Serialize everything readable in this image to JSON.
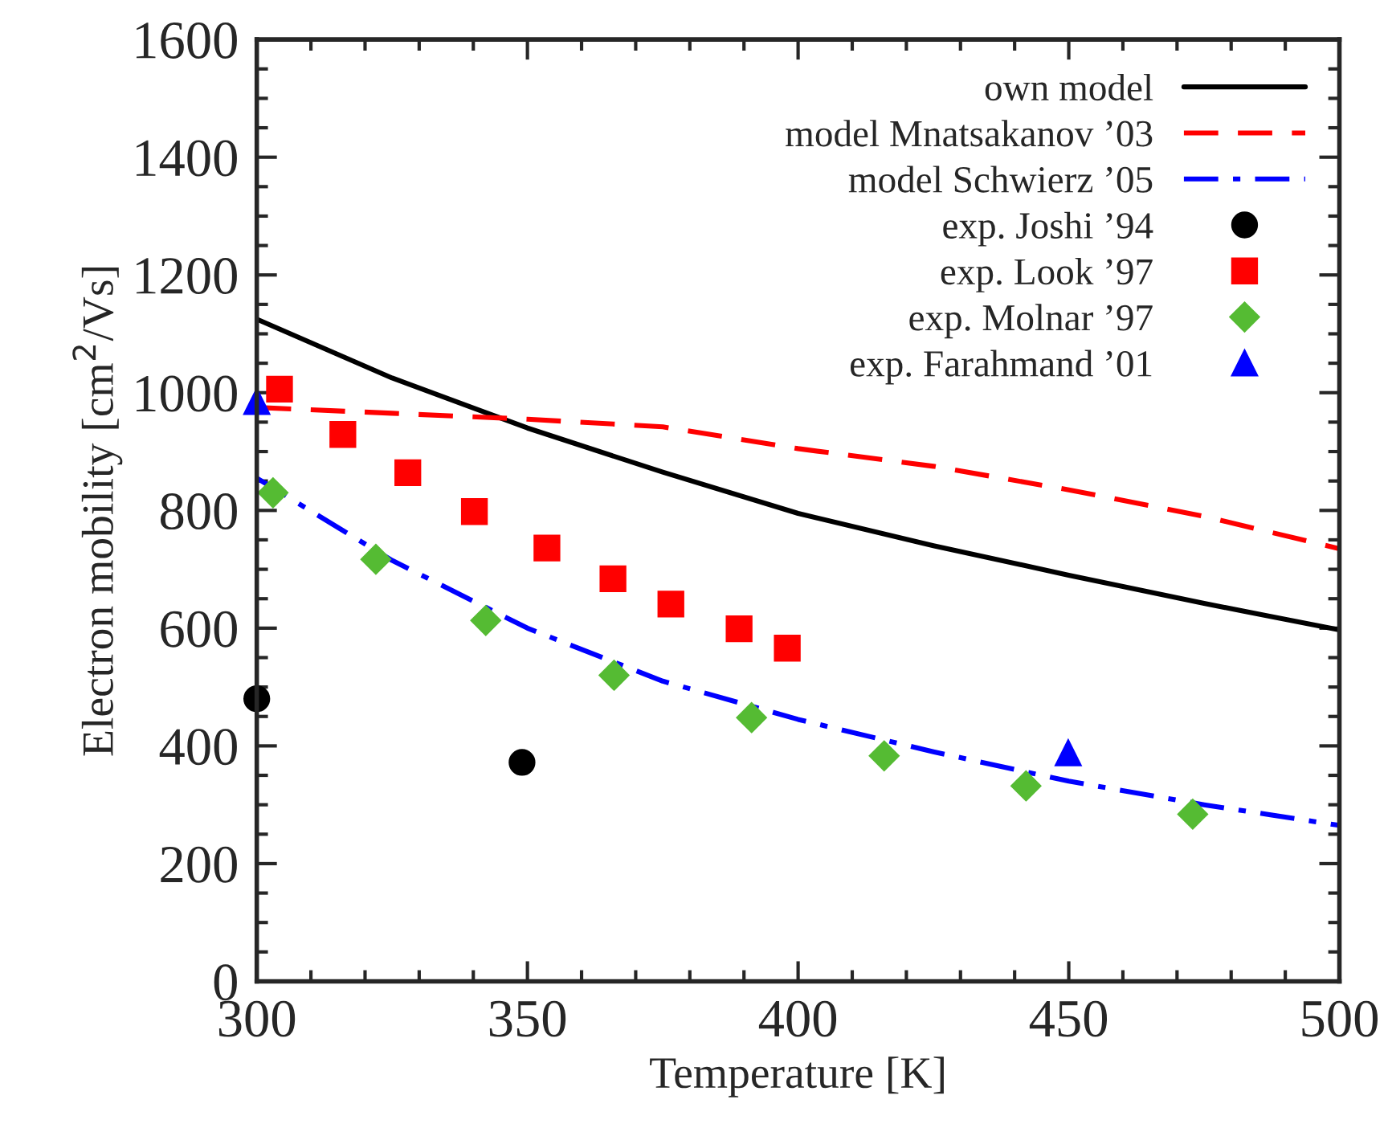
{
  "chart_data": {
    "type": "line",
    "xlabel": "Temperature [K]",
    "ylabel": "Electron mobility [cm$^{2}$/Vs]",
    "xlim": [
      300,
      500
    ],
    "xticks": [
      300,
      350,
      400,
      450,
      500
    ],
    "ylim": [
      0,
      1600
    ],
    "yticks": [
      0,
      200,
      400,
      600,
      800,
      1000,
      1200,
      1400,
      1600
    ],
    "grid": false,
    "legend": "top right",
    "series": [
      {
        "name": "own model",
        "color": "#000000",
        "line_style": "solid",
        "x": [
          300,
          325,
          350,
          375,
          400,
          425,
          450,
          475,
          500
        ],
        "values": [
          1125,
          1025,
          940,
          865,
          795,
          740,
          690,
          642,
          597
        ]
      },
      {
        "name": "model Mnatsakanov ’03",
        "color": "#ff0000",
        "line_style": "dashed",
        "x": [
          300,
          325,
          350,
          375,
          400,
          425,
          450,
          475,
          500
        ],
        "values": [
          975,
          965,
          955,
          942,
          905,
          875,
          835,
          790,
          735
        ]
      },
      {
        "name": "model Schwierz ’05",
        "color": "#0000ff",
        "line_style": "dashdot",
        "x": [
          300,
          325,
          350,
          375,
          400,
          425,
          450,
          475,
          500
        ],
        "values": [
          855,
          715,
          600,
          510,
          445,
          390,
          340,
          300,
          265
        ]
      },
      {
        "name": "exp. Joshi ’94",
        "type": "scatter",
        "color": "#000000",
        "marker": "circle",
        "x": [
          300,
          349
        ],
        "values": [
          480,
          372
        ]
      },
      {
        "name": "exp. Look ’97",
        "type": "scatter",
        "color": "#ff0000",
        "marker": "square",
        "x": [
          304.2,
          315.9,
          327.9,
          340.2,
          353.6,
          365.8,
          376.5,
          389.1,
          398
        ],
        "values": [
          1006,
          929,
          864,
          798,
          736,
          684,
          641,
          599,
          566
        ]
      },
      {
        "name": "exp. Molnar ’97",
        "type": "scatter",
        "color": "#55bb33",
        "marker": "diamond",
        "x": [
          303,
          322,
          342.3,
          366,
          391.4,
          415.9,
          442.1,
          472.9
        ],
        "values": [
          830,
          717,
          613,
          520,
          448,
          383,
          332,
          284
        ]
      },
      {
        "name": "exp. Farahmand ’01",
        "type": "scatter",
        "color": "#0000ff",
        "marker": "triangle",
        "x": [
          300,
          449.9
        ],
        "values": [
          985,
          388
        ]
      }
    ]
  }
}
